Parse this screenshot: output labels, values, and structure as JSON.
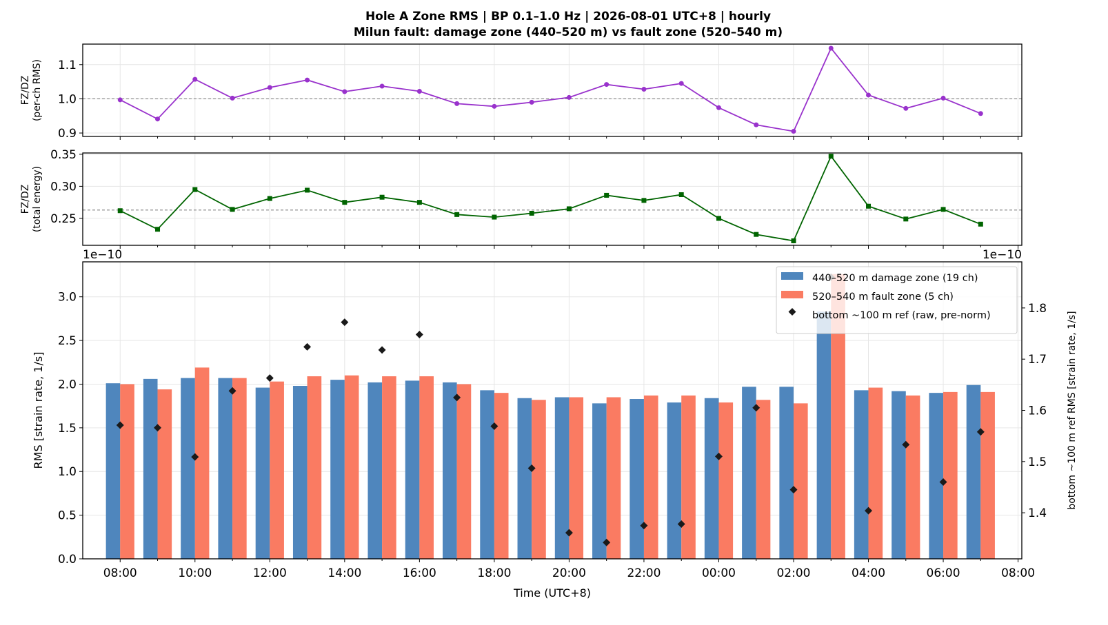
{
  "figure": {
    "title_line1": "Hole A Zone RMS  |  BP 0.1–1.0 Hz  |  2026-08-01 UTC+8  |  hourly",
    "title_line2": "Milun fault: damage zone (440–520 m) vs fault zone (520–540 m)"
  },
  "chart_data": [
    {
      "type": "line",
      "panel": "ratio-per-channel",
      "ylabel": "FZ/DZ",
      "ylabel2": "(per-ch RMS)",
      "ylim": [
        0.89,
        1.16
      ],
      "yticks": [
        0.9,
        1.0,
        1.1
      ],
      "ytick_labels": [
        "0.9",
        "1.0",
        "1.1"
      ],
      "reference_line": 1.0,
      "marker": "circle",
      "color": "#9932cc",
      "values": [
        0.997,
        0.941,
        1.057,
        1.002,
        1.033,
        1.055,
        1.021,
        1.037,
        1.022,
        0.986,
        0.978,
        0.99,
        1.004,
        1.042,
        1.028,
        1.045,
        0.974,
        0.924,
        0.905,
        1.148,
        1.011,
        0.972,
        1.002,
        0.957
      ]
    },
    {
      "type": "line",
      "panel": "ratio-total-energy",
      "ylabel": "FZ/DZ",
      "ylabel2": "(total energy)",
      "ylim": [
        0.208,
        0.352
      ],
      "yticks": [
        0.25,
        0.3,
        0.35
      ],
      "ytick_labels": [
        "0.25",
        "0.30",
        "0.35"
      ],
      "reference_line": 0.263,
      "marker": "square",
      "color": "#006400",
      "values": [
        0.262,
        0.233,
        0.295,
        0.264,
        0.281,
        0.294,
        0.275,
        0.283,
        0.275,
        0.256,
        0.252,
        0.258,
        0.265,
        0.286,
        0.278,
        0.287,
        0.25,
        0.225,
        0.215,
        0.347,
        0.269,
        0.249,
        0.264,
        0.241
      ]
    },
    {
      "type": "bar",
      "panel": "zone-rms",
      "xlabel": "Time (UTC+8)",
      "ylabel": "RMS  [strain rate, 1/s]",
      "ylabel_right": "bottom ~100 m ref RMS  [strain rate, 1/s]",
      "y_offset_text_left": "1e−10",
      "y_offset_text_right": "1e−10",
      "ylim": [
        0,
        3.4
      ],
      "yticks": [
        0.0,
        0.5,
        1.0,
        1.5,
        2.0,
        2.5,
        3.0
      ],
      "ytick_labels": [
        "0.0",
        "0.5",
        "1.0",
        "1.5",
        "2.0",
        "2.5",
        "3.0"
      ],
      "ylim_right": [
        1.31,
        1.89
      ],
      "yticks_right": [
        1.4,
        1.5,
        1.6,
        1.7,
        1.8
      ],
      "ytick_labels_right": [
        "1.4",
        "1.5",
        "1.6",
        "1.7",
        "1.8"
      ],
      "x_hours_from_start": [
        0,
        1,
        2,
        3,
        4,
        5,
        6,
        7,
        8,
        9,
        10,
        11,
        12,
        13,
        14,
        15,
        16,
        17,
        18,
        19,
        20,
        21,
        22,
        23
      ],
      "xlim": [
        -1,
        24.1
      ],
      "xticks": [
        0,
        2,
        4,
        6,
        8,
        10,
        12,
        14,
        16,
        18,
        20,
        22,
        24
      ],
      "xtick_labels": [
        "08:00",
        "10:00",
        "12:00",
        "14:00",
        "16:00",
        "18:00",
        "20:00",
        "22:00",
        "00:00",
        "02:00",
        "04:00",
        "06:00",
        "08:00"
      ],
      "series": [
        {
          "name": "440–520 m  damage zone (19 ch)",
          "color": "#4f86bd",
          "axis": "left",
          "values": [
            2.01,
            2.06,
            2.07,
            2.07,
            1.96,
            1.98,
            2.05,
            2.02,
            2.04,
            2.02,
            1.93,
            1.84,
            1.85,
            1.78,
            1.83,
            1.79,
            1.84,
            1.97,
            1.97,
            2.83,
            1.93,
            1.92,
            1.9,
            1.99
          ]
        },
        {
          "name": "520–540 m  fault zone (5 ch)",
          "color": "#fa7b62",
          "axis": "left",
          "values": [
            2.0,
            1.94,
            2.19,
            2.07,
            2.03,
            2.09,
            2.1,
            2.09,
            2.09,
            2.0,
            1.9,
            1.82,
            1.85,
            1.85,
            1.87,
            1.87,
            1.79,
            1.82,
            1.78,
            3.26,
            1.96,
            1.87,
            1.91,
            1.91
          ]
        },
        {
          "name": "bottom ~100 m ref (raw, pre-norm)",
          "color": "#1a1a1a",
          "axis": "right",
          "marker": "diamond",
          "values": [
            1.571,
            1.566,
            1.509,
            1.638,
            1.663,
            1.724,
            1.772,
            1.718,
            1.748,
            1.625,
            1.569,
            1.487,
            1.361,
            1.342,
            1.375,
            1.378,
            1.51,
            1.605,
            1.445,
            1.86,
            1.404,
            1.533,
            1.46,
            1.558
          ]
        }
      ]
    }
  ]
}
